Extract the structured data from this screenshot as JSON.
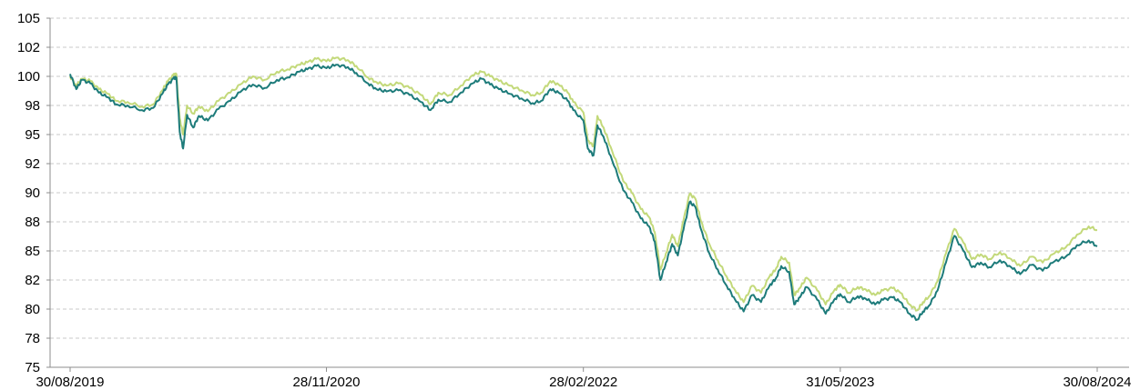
{
  "chart_data": {
    "type": "line",
    "title": "",
    "xlabel": "",
    "ylabel": "",
    "ylim": [
      75,
      105
    ],
    "xlim": [
      "2019-08-30",
      "2024-08-30"
    ],
    "yticks": [
      "105",
      "102",
      "100",
      "98",
      "95",
      "92",
      "90",
      "88",
      "85",
      "82",
      "80",
      "78",
      "75"
    ],
    "ytick_values": [
      105,
      102.5,
      100,
      97.5,
      95,
      92.5,
      90,
      87.5,
      85,
      82.5,
      80,
      77.5,
      75
    ],
    "xticks": [
      "30/08/2019",
      "28/11/2020",
      "28/02/2022",
      "31/05/2023",
      "30/08/2024"
    ],
    "xtick_dates": [
      "2019-08-30",
      "2020-11-28",
      "2022-02-28",
      "2023-05-31",
      "2024-08-30"
    ],
    "grid": "horizontal dashed",
    "legend": "none",
    "series": [
      {
        "color": "#c3d97a",
        "points": [
          [
            "2019-08-30",
            100.0
          ],
          [
            "2019-09-10",
            99.2
          ],
          [
            "2019-09-20",
            99.8
          ],
          [
            "2019-10-05",
            99.6
          ],
          [
            "2019-10-20",
            98.9
          ],
          [
            "2019-11-05",
            98.5
          ],
          [
            "2019-11-20",
            97.9
          ],
          [
            "2019-12-10",
            97.8
          ],
          [
            "2020-01-05",
            97.4
          ],
          [
            "2020-01-25",
            97.6
          ],
          [
            "2020-02-10",
            98.8
          ],
          [
            "2020-02-20",
            99.6
          ],
          [
            "2020-03-01",
            100.1
          ],
          [
            "2020-03-06",
            100.2
          ],
          [
            "2020-03-12",
            96.4
          ],
          [
            "2020-03-18",
            95.0
          ],
          [
            "2020-03-25",
            97.5
          ],
          [
            "2020-04-05",
            96.8
          ],
          [
            "2020-04-15",
            97.4
          ],
          [
            "2020-05-01",
            97.0
          ],
          [
            "2020-05-20",
            97.9
          ],
          [
            "2020-06-10",
            98.6
          ],
          [
            "2020-07-01",
            99.4
          ],
          [
            "2020-07-20",
            100.0
          ],
          [
            "2020-08-10",
            99.7
          ],
          [
            "2020-09-01",
            100.4
          ],
          [
            "2020-09-20",
            100.6
          ],
          [
            "2020-10-10",
            101.0
          ],
          [
            "2020-10-25",
            101.2
          ],
          [
            "2020-11-10",
            101.5
          ],
          [
            "2020-11-28",
            101.3
          ],
          [
            "2020-12-15",
            101.6
          ],
          [
            "2021-01-05",
            101.4
          ],
          [
            "2021-01-20",
            100.9
          ],
          [
            "2021-02-10",
            99.9
          ],
          [
            "2021-02-25",
            99.5
          ],
          [
            "2021-03-15",
            99.2
          ],
          [
            "2021-04-05",
            99.4
          ],
          [
            "2021-04-25",
            99.0
          ],
          [
            "2021-05-15",
            98.4
          ],
          [
            "2021-06-01",
            97.6
          ],
          [
            "2021-06-15",
            98.6
          ],
          [
            "2021-07-05",
            98.4
          ],
          [
            "2021-07-25",
            99.2
          ],
          [
            "2021-08-15",
            100.1
          ],
          [
            "2021-08-31",
            100.4
          ],
          [
            "2021-09-15",
            100.0
          ],
          [
            "2021-10-01",
            99.6
          ],
          [
            "2021-10-20",
            99.2
          ],
          [
            "2021-11-10",
            98.8
          ],
          [
            "2021-11-30",
            98.4
          ],
          [
            "2021-12-15",
            98.6
          ],
          [
            "2021-12-31",
            99.6
          ],
          [
            "2022-01-15",
            99.3
          ],
          [
            "2022-01-31",
            98.6
          ],
          [
            "2022-02-10",
            97.8
          ],
          [
            "2022-02-28",
            96.9
          ],
          [
            "2022-03-08",
            94.5
          ],
          [
            "2022-03-18",
            94.0
          ],
          [
            "2022-03-25",
            96.6
          ],
          [
            "2022-04-05",
            95.6
          ],
          [
            "2022-04-20",
            93.6
          ],
          [
            "2022-05-10",
            91.0
          ],
          [
            "2022-05-25",
            90.0
          ],
          [
            "2022-06-10",
            88.6
          ],
          [
            "2022-06-25",
            87.9
          ],
          [
            "2022-07-05",
            86.6
          ],
          [
            "2022-07-15",
            83.4
          ],
          [
            "2022-07-25",
            84.8
          ],
          [
            "2022-08-05",
            86.4
          ],
          [
            "2022-08-15",
            85.4
          ],
          [
            "2022-08-25",
            87.6
          ],
          [
            "2022-09-05",
            89.9
          ],
          [
            "2022-09-15",
            89.5
          ],
          [
            "2022-09-25",
            87.6
          ],
          [
            "2022-10-10",
            85.6
          ],
          [
            "2022-10-25",
            84.2
          ],
          [
            "2022-11-10",
            82.8
          ],
          [
            "2022-11-25",
            81.6
          ],
          [
            "2022-12-10",
            80.6
          ],
          [
            "2022-12-25",
            82.0
          ],
          [
            "2023-01-10",
            81.4
          ],
          [
            "2023-01-25",
            82.8
          ],
          [
            "2023-02-05",
            83.4
          ],
          [
            "2023-02-15",
            84.5
          ],
          [
            "2023-03-01",
            84.0
          ],
          [
            "2023-03-10",
            81.2
          ],
          [
            "2023-03-20",
            81.8
          ],
          [
            "2023-04-01",
            82.7
          ],
          [
            "2023-04-20",
            81.6
          ],
          [
            "2023-05-05",
            80.4
          ],
          [
            "2023-05-20",
            81.6
          ],
          [
            "2023-05-31",
            82.1
          ],
          [
            "2023-06-15",
            81.4
          ],
          [
            "2023-07-01",
            81.9
          ],
          [
            "2023-07-15",
            81.7
          ],
          [
            "2023-08-01",
            81.2
          ],
          [
            "2023-08-15",
            81.6
          ],
          [
            "2023-09-01",
            81.8
          ],
          [
            "2023-09-15",
            81.4
          ],
          [
            "2023-10-01",
            80.4
          ],
          [
            "2023-10-15",
            79.9
          ],
          [
            "2023-10-25",
            80.6
          ],
          [
            "2023-11-05",
            81.1
          ],
          [
            "2023-11-20",
            82.4
          ],
          [
            "2023-12-05",
            84.8
          ],
          [
            "2023-12-20",
            86.9
          ],
          [
            "2024-01-05",
            85.7
          ],
          [
            "2024-01-20",
            84.3
          ],
          [
            "2024-02-05",
            84.7
          ],
          [
            "2024-02-20",
            84.3
          ],
          [
            "2024-03-10",
            84.9
          ],
          [
            "2024-03-30",
            84.3
          ],
          [
            "2024-04-15",
            83.7
          ],
          [
            "2024-05-05",
            84.5
          ],
          [
            "2024-05-25",
            84.0
          ],
          [
            "2024-06-15",
            84.8
          ],
          [
            "2024-07-05",
            85.3
          ],
          [
            "2024-07-25",
            86.4
          ],
          [
            "2024-08-15",
            87.1
          ],
          [
            "2024-08-30",
            86.8
          ]
        ]
      },
      {
        "color": "#1d7b7a",
        "points": [
          [
            "2019-08-30",
            100.2
          ],
          [
            "2019-09-10",
            98.9
          ],
          [
            "2019-09-20",
            99.7
          ],
          [
            "2019-10-05",
            99.4
          ],
          [
            "2019-10-20",
            98.6
          ],
          [
            "2019-11-05",
            98.2
          ],
          [
            "2019-11-20",
            97.6
          ],
          [
            "2019-12-10",
            97.5
          ],
          [
            "2020-01-05",
            97.1
          ],
          [
            "2020-01-25",
            97.3
          ],
          [
            "2020-02-10",
            98.5
          ],
          [
            "2020-02-20",
            99.3
          ],
          [
            "2020-03-01",
            99.8
          ],
          [
            "2020-03-06",
            99.9
          ],
          [
            "2020-03-12",
            95.2
          ],
          [
            "2020-03-18",
            93.8
          ],
          [
            "2020-03-25",
            96.7
          ],
          [
            "2020-04-05",
            95.6
          ],
          [
            "2020-04-15",
            96.6
          ],
          [
            "2020-05-01",
            96.2
          ],
          [
            "2020-05-20",
            97.2
          ],
          [
            "2020-06-10",
            97.9
          ],
          [
            "2020-07-01",
            98.8
          ],
          [
            "2020-07-20",
            99.3
          ],
          [
            "2020-08-10",
            99.0
          ],
          [
            "2020-09-01",
            99.7
          ],
          [
            "2020-09-20",
            99.9
          ],
          [
            "2020-10-10",
            100.4
          ],
          [
            "2020-10-25",
            100.6
          ],
          [
            "2020-11-10",
            100.9
          ],
          [
            "2020-11-28",
            100.7
          ],
          [
            "2020-12-15",
            101.0
          ],
          [
            "2021-01-05",
            100.8
          ],
          [
            "2021-01-20",
            100.3
          ],
          [
            "2021-02-10",
            99.4
          ],
          [
            "2021-02-25",
            98.9
          ],
          [
            "2021-03-15",
            98.7
          ],
          [
            "2021-04-05",
            98.8
          ],
          [
            "2021-04-25",
            98.4
          ],
          [
            "2021-05-15",
            97.8
          ],
          [
            "2021-06-01",
            97.1
          ],
          [
            "2021-06-15",
            98.0
          ],
          [
            "2021-07-05",
            97.8
          ],
          [
            "2021-07-25",
            98.6
          ],
          [
            "2021-08-15",
            99.4
          ],
          [
            "2021-08-31",
            99.8
          ],
          [
            "2021-09-15",
            99.3
          ],
          [
            "2021-10-01",
            98.9
          ],
          [
            "2021-10-20",
            98.5
          ],
          [
            "2021-11-10",
            98.1
          ],
          [
            "2021-11-30",
            97.7
          ],
          [
            "2021-12-15",
            97.9
          ],
          [
            "2021-12-31",
            98.9
          ],
          [
            "2022-01-15",
            98.6
          ],
          [
            "2022-01-31",
            97.9
          ],
          [
            "2022-02-10",
            97.1
          ],
          [
            "2022-02-28",
            96.2
          ],
          [
            "2022-03-08",
            93.8
          ],
          [
            "2022-03-18",
            93.2
          ],
          [
            "2022-03-25",
            95.8
          ],
          [
            "2022-04-05",
            94.8
          ],
          [
            "2022-04-20",
            92.8
          ],
          [
            "2022-05-10",
            90.2
          ],
          [
            "2022-05-25",
            89.2
          ],
          [
            "2022-06-10",
            87.8
          ],
          [
            "2022-06-25",
            87.1
          ],
          [
            "2022-07-05",
            85.8
          ],
          [
            "2022-07-15",
            82.5
          ],
          [
            "2022-07-25",
            84.0
          ],
          [
            "2022-08-05",
            85.6
          ],
          [
            "2022-08-15",
            84.6
          ],
          [
            "2022-08-25",
            86.8
          ],
          [
            "2022-09-05",
            89.2
          ],
          [
            "2022-09-15",
            88.8
          ],
          [
            "2022-09-25",
            86.9
          ],
          [
            "2022-10-10",
            84.8
          ],
          [
            "2022-10-25",
            83.4
          ],
          [
            "2022-11-10",
            82.0
          ],
          [
            "2022-11-25",
            80.8
          ],
          [
            "2022-12-10",
            79.8
          ],
          [
            "2022-12-25",
            81.2
          ],
          [
            "2023-01-10",
            80.6
          ],
          [
            "2023-01-25",
            82.0
          ],
          [
            "2023-02-05",
            82.6
          ],
          [
            "2023-02-15",
            83.7
          ],
          [
            "2023-03-01",
            83.2
          ],
          [
            "2023-03-10",
            80.4
          ],
          [
            "2023-03-20",
            81.0
          ],
          [
            "2023-04-01",
            81.9
          ],
          [
            "2023-04-20",
            80.8
          ],
          [
            "2023-05-05",
            79.6
          ],
          [
            "2023-05-20",
            80.8
          ],
          [
            "2023-05-31",
            81.3
          ],
          [
            "2023-06-15",
            80.6
          ],
          [
            "2023-07-01",
            81.1
          ],
          [
            "2023-07-15",
            80.9
          ],
          [
            "2023-08-01",
            80.4
          ],
          [
            "2023-08-15",
            80.8
          ],
          [
            "2023-09-01",
            81.0
          ],
          [
            "2023-09-15",
            80.6
          ],
          [
            "2023-10-01",
            79.6
          ],
          [
            "2023-10-15",
            79.1
          ],
          [
            "2023-10-25",
            79.8
          ],
          [
            "2023-11-05",
            80.3
          ],
          [
            "2023-11-20",
            81.6
          ],
          [
            "2023-12-05",
            84.0
          ],
          [
            "2023-12-20",
            86.3
          ],
          [
            "2024-01-05",
            85.0
          ],
          [
            "2024-01-20",
            83.6
          ],
          [
            "2024-02-05",
            84.0
          ],
          [
            "2024-02-20",
            83.6
          ],
          [
            "2024-03-10",
            84.2
          ],
          [
            "2024-03-30",
            83.6
          ],
          [
            "2024-04-15",
            83.0
          ],
          [
            "2024-05-05",
            83.8
          ],
          [
            "2024-05-25",
            83.3
          ],
          [
            "2024-06-15",
            84.1
          ],
          [
            "2024-07-05",
            84.5
          ],
          [
            "2024-07-25",
            85.5
          ],
          [
            "2024-08-15",
            85.9
          ],
          [
            "2024-08-30",
            85.4
          ]
        ]
      }
    ]
  }
}
